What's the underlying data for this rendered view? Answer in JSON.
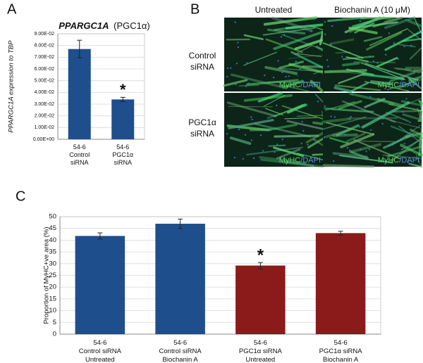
{
  "panel_labels": [
    "A",
    "B",
    "C"
  ],
  "chart_data": [
    {
      "type": "bar",
      "title": [
        "PPARGC1A",
        "(PGC1α)"
      ],
      "y_label": "PPARGC1A expression to TBP",
      "categories": [
        "54-6\nControl\nsiRNA",
        "54-6\nPGC1α\nsiRNA"
      ],
      "values": [
        0.077,
        0.034
      ],
      "errors": [
        0.0075,
        0.0018
      ],
      "significance": [
        null,
        "*"
      ],
      "color": "#1f4e8c",
      "ylim": [
        0,
        0.09
      ],
      "yticks": [
        {
          "value": 0,
          "label": "0.00E+00"
        },
        {
          "value": 0.01,
          "label": "1.00E-02"
        },
        {
          "value": 0.02,
          "label": "2.00E-02"
        },
        {
          "value": 0.03,
          "label": "3.00E-02"
        },
        {
          "value": 0.04,
          "label": "4.00E-02"
        },
        {
          "value": 0.05,
          "label": "5.00E-02"
        },
        {
          "value": 0.06,
          "label": "6.00E-02"
        },
        {
          "value": 0.07,
          "label": "7.00E-02"
        },
        {
          "value": 0.08,
          "label": "8.00E-02"
        },
        {
          "value": 0.09,
          "label": "9.00E-02"
        }
      ],
      "grid": true
    },
    {
      "type": "bar",
      "y_label": "Proportion of MyHC+ve area (%)",
      "categories": [
        "54-6\nControl siRNA\nUntreated",
        "54-6\nControl siRNA\nBiochanin A",
        "54-6\nPGC1α siRNA\nUntreated",
        "54-6\nPGC1α siRNA\nBiochanin A"
      ],
      "values": [
        41.8,
        47,
        29.2,
        43
      ],
      "errors": [
        1.3,
        2,
        1.3,
        0.8
      ],
      "significance": [
        null,
        null,
        "*",
        null
      ],
      "colors": [
        "#1f4e8c",
        "#1f4e8c",
        "#8b1a1a",
        "#8b1a1a"
      ],
      "ylim": [
        0,
        50
      ],
      "yticks": [
        0,
        5,
        10,
        15,
        20,
        25,
        30,
        35,
        40,
        45,
        50
      ],
      "grid": true
    }
  ],
  "image_panel": {
    "columns": [
      "Untreated",
      "Biochanin A (10 μM)"
    ],
    "rows": [
      "Control\nsiRNA",
      "PGC1α\nsiRNA"
    ],
    "stain_label": [
      "MyHC",
      "/DAPI"
    ]
  }
}
